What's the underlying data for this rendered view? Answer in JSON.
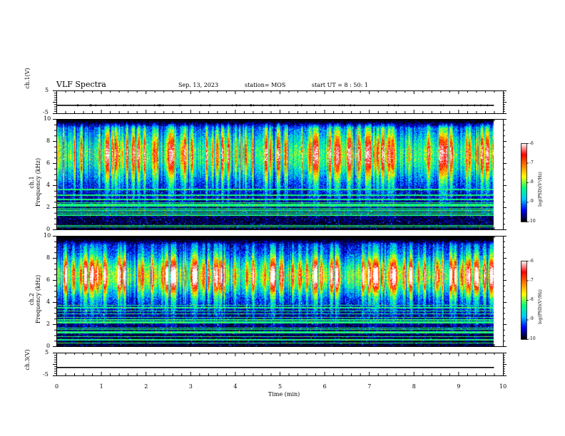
{
  "header": {
    "title": "VLF Spectra",
    "date": "Sep. 13, 2023",
    "station": "station= MOS",
    "start": "start UT =  8 : 50: 1"
  },
  "chart_data": [
    {
      "type": "line",
      "panel": "ch1-voltage",
      "ylabel": "ch.1(V)",
      "ylim": [
        -5,
        5
      ],
      "yticks": [
        "5",
        "-5"
      ],
      "x": [
        0,
        9.8
      ],
      "values": [
        -1.5,
        -1.5
      ],
      "xlim": [
        0,
        10
      ]
    },
    {
      "type": "heatmap",
      "panel": "ch1-spectrogram",
      "ylabel": "ch.1\nFrequency (kHz)",
      "ylim": [
        0,
        10
      ],
      "yticks": [
        "0",
        "2",
        "4",
        "6",
        "8",
        "10"
      ],
      "xlim": [
        0,
        9.8
      ],
      "colorbar": {
        "label": "log(PSD)(V²/Hz)",
        "range": [
          -10,
          -6
        ],
        "ticks": [
          "-6",
          "-7",
          "-8",
          "-9",
          "-10"
        ]
      },
      "pattern": "broadband intensity 5-9 kHz, many vertical bursts, horizontal narrowband lines below 4 kHz"
    },
    {
      "type": "heatmap",
      "panel": "ch2-spectrogram",
      "ylabel": "ch.2\nFrequency (kHz)",
      "ylim": [
        0,
        10
      ],
      "yticks": [
        "0",
        "2",
        "4",
        "6",
        "8",
        "10"
      ],
      "xlim": [
        0,
        9.8
      ],
      "colorbar": {
        "label": "log(PSD)(V²/Hz)",
        "range": [
          -10,
          -6
        ],
        "ticks": [
          "-6",
          "-7",
          "-8",
          "-9",
          "-10"
        ]
      },
      "pattern": "strong red band 5-8 kHz, vertical bursts, horizontal lines below 4 kHz"
    },
    {
      "type": "line",
      "panel": "ch3-voltage",
      "ylabel": "ch.3(V)",
      "ylim": [
        -5,
        5
      ],
      "yticks": [
        "5",
        "-5"
      ],
      "x": [
        0,
        9.8
      ],
      "values": [
        -1.5,
        -1.5
      ],
      "xlim": [
        0,
        10
      ]
    }
  ],
  "xaxis": {
    "label": "Time (min)",
    "ticks": [
      "0",
      "1",
      "2",
      "3",
      "4",
      "5",
      "6",
      "7",
      "8",
      "9",
      "10"
    ]
  },
  "colors": {
    "scale": [
      "#000000",
      "#0000ff",
      "#00c8ff",
      "#00ff80",
      "#ffff00",
      "#ff8000",
      "#ff0000",
      "#ffffff"
    ]
  }
}
